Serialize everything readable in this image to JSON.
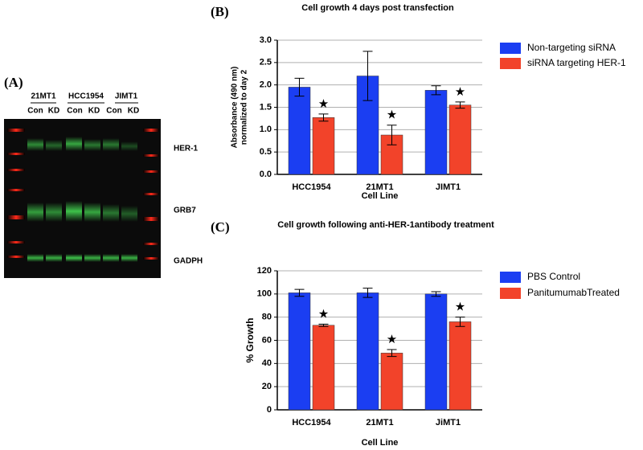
{
  "panel_labels": [
    "(A)",
    "(B)",
    "(C)"
  ],
  "blot": {
    "groups": [
      "21MT1",
      "HCC1954",
      "JIMT1"
    ],
    "lanes": [
      "Con",
      "KD",
      "Con",
      "KD",
      "Con",
      "KD"
    ],
    "bands": [
      "HER-1",
      "GRB7",
      "GADPH"
    ]
  },
  "chart_data": [
    {
      "type": "bar",
      "title": "Cell growth 4 days post transfection",
      "xlabel": "Cell Line",
      "ylabel": [
        "Absorbance (490 nm)",
        "normalized to day 2"
      ],
      "categories": [
        "HCC1954",
        "21MT1",
        "JIMT1"
      ],
      "series": [
        {
          "name": "Non-targeting siRNA",
          "color": "#1b3ef2",
          "values": [
            1.95,
            2.2,
            1.88
          ],
          "errors": [
            0.2,
            0.55,
            0.1
          ]
        },
        {
          "name": "siRNA targeting HER-1",
          "color": "#f2432a",
          "values": [
            1.27,
            0.88,
            1.55
          ],
          "errors": [
            0.08,
            0.22,
            0.07
          ],
          "annotations": [
            "★",
            "★",
            "★"
          ]
        }
      ],
      "ylim": [
        0,
        3.0
      ],
      "yticks": [
        {
          "value": 0,
          "label": "0.0"
        },
        0.5,
        {
          "value": 1,
          "label": "1.0"
        },
        1.5,
        {
          "value": 2,
          "label": "2.0"
        },
        2.5,
        {
          "value": 3,
          "label": "3.0"
        }
      ],
      "grid": true,
      "legend": "right"
    },
    {
      "type": "bar",
      "title": "Cell growth following anti-HER-1antibody treatment",
      "xlabel": "Cell Line",
      "ylabel": [
        "% Growth"
      ],
      "categories": [
        "HCC1954",
        "21MT1",
        "JiMT1"
      ],
      "series": [
        {
          "name": "PBS Control",
          "color": "#1b3ef2",
          "values": [
            101,
            101,
            100
          ],
          "errors": [
            3,
            4,
            2
          ]
        },
        {
          "name": "PanitumumabTreated",
          "color": "#f2432a",
          "values": [
            73,
            49,
            76
          ],
          "errors": [
            1,
            3,
            4
          ],
          "annotations": [
            "★",
            "★",
            "★"
          ]
        }
      ],
      "ylim": [
        0,
        120
      ],
      "yticks": [
        0,
        20,
        40,
        60,
        80,
        100,
        120
      ],
      "grid": true,
      "legend": "right"
    }
  ]
}
